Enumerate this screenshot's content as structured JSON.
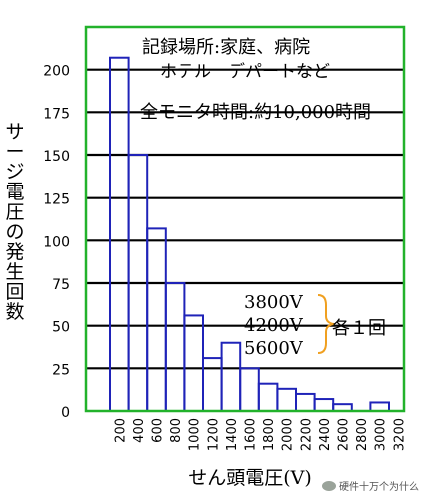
{
  "chart_data": {
    "type": "bar",
    "ylabel": "サージ電圧の発生回数",
    "xlabel": "せん頭電圧(V)",
    "ylim": [
      0,
      225
    ],
    "yticks": [
      0,
      25,
      50,
      75,
      100,
      125,
      150,
      175,
      200
    ],
    "categories": [
      "200",
      "400",
      "600",
      "800",
      "1000",
      "1200",
      "1400",
      "1600",
      "1800",
      "2000",
      "2200",
      "2400",
      "2600",
      "2800",
      "3000",
      "3200"
    ],
    "xticks": [
      "200",
      "400",
      "600",
      "800",
      "1000",
      "1200",
      "1400",
      "1600",
      "1800",
      "2000",
      "2200",
      "2400",
      "2600",
      "2800",
      "3000",
      "3200"
    ],
    "values": [
      207,
      150,
      107,
      75,
      56,
      31,
      40,
      25,
      16,
      13,
      10,
      7,
      4,
      0,
      5,
      0
    ],
    "grid": "horizontal",
    "bar_color": "#1f23b8",
    "frame_color": "#22b22b",
    "annotations": {
      "line1": "記録場所:家庭、病院",
      "line2": "ホテル　デパートなど",
      "line3": "全モニタ時間:約10,000時間",
      "voltages": [
        "3800V",
        "4200V",
        "5600V"
      ],
      "each": "各１回"
    }
  },
  "watermark": "硬件十万个为什么"
}
